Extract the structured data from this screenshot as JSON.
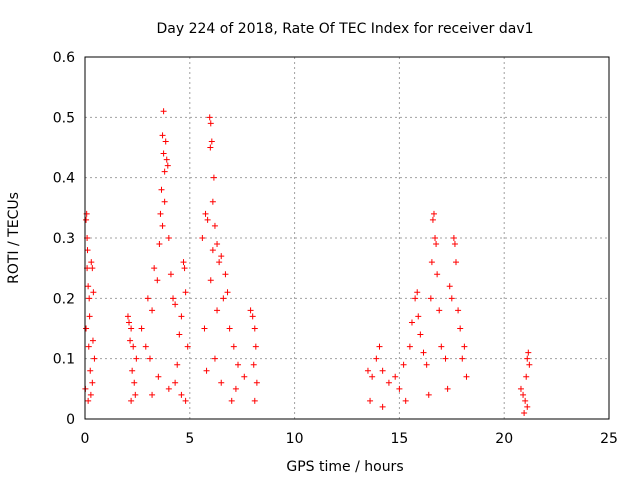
{
  "chart_data": {
    "type": "scatter",
    "title": "Day 224 of 2018, Rate Of TEC Index for receiver dav1",
    "xlabel": "GPS time / hours",
    "ylabel": "ROTI / TECUs",
    "xlim": [
      0,
      25
    ],
    "ylim": [
      0,
      0.6
    ],
    "xticks": [
      0,
      5,
      10,
      15,
      20,
      25
    ],
    "yticks": [
      0,
      0.1,
      0.2,
      0.3,
      0.4,
      0.5,
      0.6
    ],
    "xtick_labels": [
      "0",
      "5",
      "10",
      "15",
      "20",
      "25"
    ],
    "ytick_labels": [
      "0",
      "0.1",
      "0.2",
      "0.3",
      "0.4",
      "0.5",
      "0.6"
    ],
    "grid": true,
    "marker": "+",
    "color": "#ff0000",
    "series": [
      {
        "points": [
          [
            0.02,
            0.05
          ],
          [
            0.05,
            0.15
          ],
          [
            0.05,
            0.33
          ],
          [
            0.08,
            0.34
          ],
          [
            0.1,
            0.3
          ],
          [
            0.12,
            0.28
          ],
          [
            0.1,
            0.25
          ],
          [
            0.15,
            0.22
          ],
          [
            0.2,
            0.2
          ],
          [
            0.22,
            0.17
          ],
          [
            0.18,
            0.12
          ],
          [
            0.3,
            0.26
          ],
          [
            0.35,
            0.25
          ],
          [
            0.4,
            0.21
          ],
          [
            0.25,
            0.08
          ],
          [
            0.35,
            0.06
          ],
          [
            0.28,
            0.04
          ],
          [
            0.45,
            0.1
          ],
          [
            0.38,
            0.13
          ],
          [
            0.15,
            0.03
          ],
          [
            2.05,
            0.17
          ],
          [
            2.1,
            0.16
          ],
          [
            2.2,
            0.15
          ],
          [
            2.15,
            0.13
          ],
          [
            2.3,
            0.12
          ],
          [
            2.25,
            0.08
          ],
          [
            2.35,
            0.06
          ],
          [
            2.4,
            0.04
          ],
          [
            2.2,
            0.03
          ],
          [
            2.45,
            0.1
          ],
          [
            2.7,
            0.15
          ],
          [
            2.9,
            0.12
          ],
          [
            3.1,
            0.1
          ],
          [
            3.0,
            0.2
          ],
          [
            3.2,
            0.18
          ],
          [
            3.3,
            0.25
          ],
          [
            3.45,
            0.23
          ],
          [
            3.55,
            0.29
          ],
          [
            3.6,
            0.34
          ],
          [
            3.7,
            0.32
          ],
          [
            3.75,
            0.44
          ],
          [
            3.8,
            0.41
          ],
          [
            3.7,
            0.47
          ],
          [
            3.85,
            0.46
          ],
          [
            3.75,
            0.51
          ],
          [
            3.9,
            0.43
          ],
          [
            3.95,
            0.42
          ],
          [
            4.0,
            0.3
          ],
          [
            3.65,
            0.38
          ],
          [
            3.8,
            0.36
          ],
          [
            4.1,
            0.24
          ],
          [
            4.2,
            0.2
          ],
          [
            4.3,
            0.19
          ],
          [
            4.5,
            0.14
          ],
          [
            4.7,
            0.26
          ],
          [
            4.75,
            0.25
          ],
          [
            4.8,
            0.21
          ],
          [
            4.6,
            0.17
          ],
          [
            4.9,
            0.12
          ],
          [
            4.4,
            0.09
          ],
          [
            4.3,
            0.06
          ],
          [
            4.6,
            0.04
          ],
          [
            4.8,
            0.03
          ],
          [
            4.0,
            0.05
          ],
          [
            3.5,
            0.07
          ],
          [
            3.2,
            0.04
          ],
          [
            5.6,
            0.3
          ],
          [
            5.75,
            0.34
          ],
          [
            5.85,
            0.33
          ],
          [
            5.95,
            0.5
          ],
          [
            6.0,
            0.49
          ],
          [
            5.98,
            0.45
          ],
          [
            6.05,
            0.46
          ],
          [
            6.1,
            0.36
          ],
          [
            6.15,
            0.4
          ],
          [
            6.2,
            0.32
          ],
          [
            6.1,
            0.28
          ],
          [
            6.3,
            0.29
          ],
          [
            6.4,
            0.26
          ],
          [
            6.5,
            0.27
          ],
          [
            6.7,
            0.24
          ],
          [
            6.8,
            0.21
          ],
          [
            6.6,
            0.2
          ],
          [
            6.9,
            0.15
          ],
          [
            7.1,
            0.12
          ],
          [
            7.3,
            0.09
          ],
          [
            7.6,
            0.07
          ],
          [
            7.2,
            0.05
          ],
          [
            6.5,
            0.06
          ],
          [
            6.2,
            0.1
          ],
          [
            5.8,
            0.08
          ],
          [
            5.7,
            0.15
          ],
          [
            6.0,
            0.23
          ],
          [
            6.3,
            0.18
          ],
          [
            7.0,
            0.03
          ],
          [
            7.9,
            0.18
          ],
          [
            8.0,
            0.17
          ],
          [
            8.1,
            0.15
          ],
          [
            8.15,
            0.12
          ],
          [
            8.05,
            0.09
          ],
          [
            8.2,
            0.06
          ],
          [
            8.1,
            0.03
          ],
          [
            13.5,
            0.08
          ],
          [
            13.7,
            0.07
          ],
          [
            13.9,
            0.1
          ],
          [
            14.05,
            0.12
          ],
          [
            14.2,
            0.08
          ],
          [
            14.5,
            0.06
          ],
          [
            14.8,
            0.07
          ],
          [
            15.0,
            0.05
          ],
          [
            15.2,
            0.09
          ],
          [
            15.5,
            0.12
          ],
          [
            15.6,
            0.16
          ],
          [
            15.75,
            0.2
          ],
          [
            15.85,
            0.21
          ],
          [
            15.9,
            0.17
          ],
          [
            16.0,
            0.14
          ],
          [
            16.15,
            0.11
          ],
          [
            16.3,
            0.09
          ],
          [
            16.5,
            0.2
          ],
          [
            16.55,
            0.26
          ],
          [
            16.6,
            0.33
          ],
          [
            16.65,
            0.34
          ],
          [
            16.7,
            0.3
          ],
          [
            16.75,
            0.29
          ],
          [
            16.8,
            0.24
          ],
          [
            16.9,
            0.18
          ],
          [
            17.0,
            0.12
          ],
          [
            17.2,
            0.1
          ],
          [
            17.4,
            0.22
          ],
          [
            17.5,
            0.2
          ],
          [
            17.6,
            0.3
          ],
          [
            17.65,
            0.29
          ],
          [
            17.7,
            0.26
          ],
          [
            17.8,
            0.18
          ],
          [
            17.9,
            0.15
          ],
          [
            18.0,
            0.1
          ],
          [
            18.1,
            0.12
          ],
          [
            18.2,
            0.07
          ],
          [
            17.3,
            0.05
          ],
          [
            16.4,
            0.04
          ],
          [
            15.3,
            0.03
          ],
          [
            14.2,
            0.02
          ],
          [
            13.6,
            0.03
          ],
          [
            20.8,
            0.05
          ],
          [
            20.9,
            0.04
          ],
          [
            21.0,
            0.03
          ],
          [
            21.05,
            0.07
          ],
          [
            21.1,
            0.1
          ],
          [
            21.15,
            0.11
          ],
          [
            21.2,
            0.09
          ],
          [
            21.1,
            0.02
          ],
          [
            20.95,
            0.01
          ]
        ]
      }
    ]
  }
}
